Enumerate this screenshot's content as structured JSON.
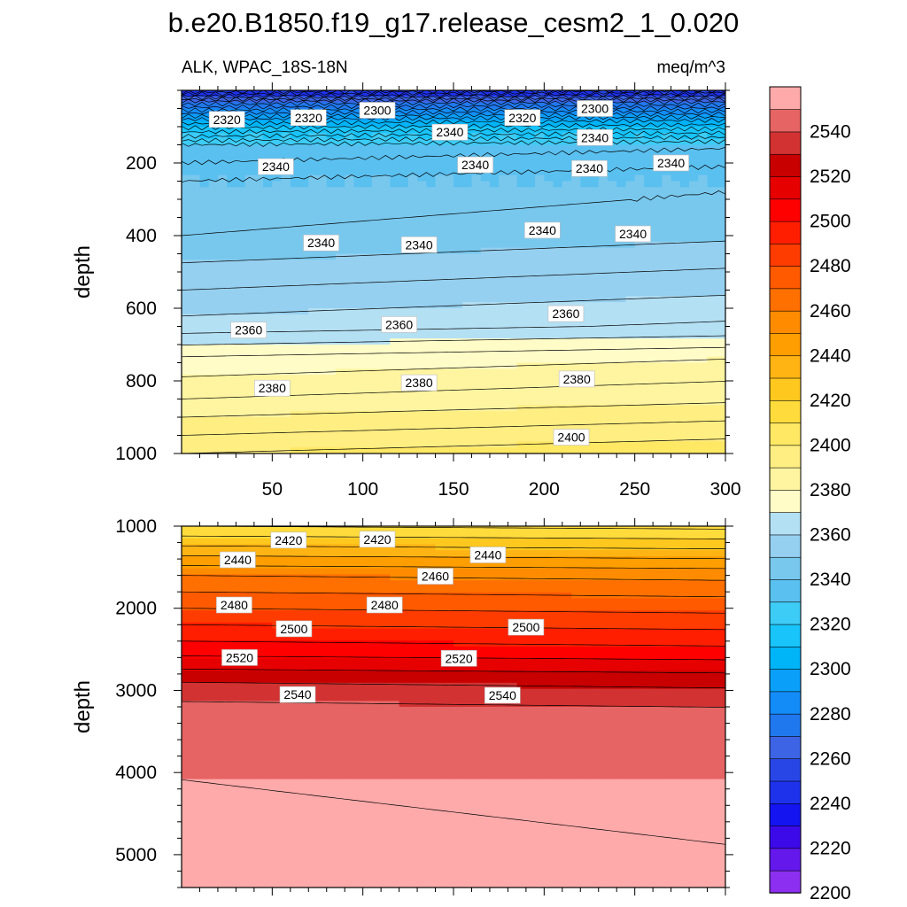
{
  "chart_data": [
    {
      "type": "heatmap",
      "panel": "upper",
      "title": "b.e20.B1850.f19_g17.release_cesm2_1_0.020",
      "left_string": "ALK, WPAC_18S-18N",
      "right_string": "meq/m^3",
      "xlabel": "",
      "ylabel": "depth",
      "xlim": [
        0,
        300
      ],
      "ylim": [
        1000,
        0
      ],
      "x_ticks": [
        50,
        100,
        150,
        200,
        250,
        300
      ],
      "x_tick_labels": [
        "50",
        "100",
        "150",
        "200",
        "250",
        "300"
      ],
      "y_ticks": [
        200,
        400,
        600,
        800,
        1000
      ],
      "y_tick_labels": [
        "200",
        "400",
        "600",
        "800",
        "1000"
      ],
      "contour_interval": 5,
      "approx_profile": {
        "depth": [
          0,
          30,
          80,
          150,
          250,
          400,
          550,
          650,
          740,
          850,
          950,
          1000
        ],
        "value": [
          2240,
          2270,
          2300,
          2330,
          2340,
          2345,
          2355,
          2362,
          2376,
          2385,
          2395,
          2400
        ]
      },
      "contour_labels": [
        {
          "text": "2320",
          "x": 25,
          "depth": 80
        },
        {
          "text": "2320",
          "x": 70,
          "depth": 75
        },
        {
          "text": "2300",
          "x": 108,
          "depth": 55
        },
        {
          "text": "2320",
          "x": 188,
          "depth": 75
        },
        {
          "text": "2300",
          "x": 228,
          "depth": 50
        },
        {
          "text": "2340",
          "x": 148,
          "depth": 115
        },
        {
          "text": "2340",
          "x": 228,
          "depth": 130
        },
        {
          "text": "2340",
          "x": 52,
          "depth": 210
        },
        {
          "text": "2340",
          "x": 162,
          "depth": 205
        },
        {
          "text": "2340",
          "x": 225,
          "depth": 215
        },
        {
          "text": "2340",
          "x": 270,
          "depth": 200
        },
        {
          "text": "2340",
          "x": 77,
          "depth": 420
        },
        {
          "text": "2340",
          "x": 131,
          "depth": 425
        },
        {
          "text": "2340",
          "x": 199,
          "depth": 385
        },
        {
          "text": "2340",
          "x": 249,
          "depth": 395
        },
        {
          "text": "2360",
          "x": 37,
          "depth": 660
        },
        {
          "text": "2360",
          "x": 120,
          "depth": 645
        },
        {
          "text": "2360",
          "x": 212,
          "depth": 615
        },
        {
          "text": "2380",
          "x": 50,
          "depth": 820
        },
        {
          "text": "2380",
          "x": 131,
          "depth": 805
        },
        {
          "text": "2380",
          "x": 218,
          "depth": 795
        },
        {
          "text": "2400",
          "x": 215,
          "depth": 955
        }
      ]
    },
    {
      "type": "heatmap",
      "panel": "lower",
      "xlabel": "",
      "ylabel": "depth",
      "xlim": [
        0,
        300
      ],
      "ylim": [
        5400,
        1000
      ],
      "y_ticks": [
        1000,
        2000,
        3000,
        4000,
        5000
      ],
      "y_tick_labels": [
        "1000",
        "2000",
        "3000",
        "4000",
        "5000"
      ],
      "contour_interval": 10,
      "approx_profile": {
        "depth": [
          1000,
          1600,
          2000,
          2500,
          2900,
          3300,
          5400
        ],
        "value": [
          2410,
          2460,
          2480,
          2505,
          2530,
          2547,
          2555
        ]
      },
      "contour_labels": [
        {
          "text": "2420",
          "x": 59,
          "depth": 1170
        },
        {
          "text": "2420",
          "x": 108,
          "depth": 1160
        },
        {
          "text": "2440",
          "x": 31,
          "depth": 1410
        },
        {
          "text": "2440",
          "x": 169,
          "depth": 1350
        },
        {
          "text": "2460",
          "x": 140,
          "depth": 1610
        },
        {
          "text": "2480",
          "x": 29,
          "depth": 1960
        },
        {
          "text": "2480",
          "x": 112,
          "depth": 1960
        },
        {
          "text": "2500",
          "x": 62,
          "depth": 2250
        },
        {
          "text": "2500",
          "x": 190,
          "depth": 2230
        },
        {
          "text": "2520",
          "x": 32,
          "depth": 2600
        },
        {
          "text": "2520",
          "x": 153,
          "depth": 2610
        },
        {
          "text": "2540",
          "x": 64,
          "depth": 3050
        },
        {
          "text": "2540",
          "x": 177,
          "depth": 3060
        }
      ]
    },
    {
      "type": "colorbar",
      "levels": [
        2200,
        2210,
        2220,
        2230,
        2240,
        2250,
        2260,
        2270,
        2280,
        2290,
        2300,
        2310,
        2320,
        2330,
        2340,
        2350,
        2360,
        2370,
        2380,
        2390,
        2400,
        2410,
        2420,
        2430,
        2440,
        2450,
        2460,
        2470,
        2480,
        2490,
        2500,
        2510,
        2520,
        2530,
        2540,
        2550
      ],
      "tick_labels": [
        "2200",
        "2220",
        "2240",
        "2260",
        "2280",
        "2300",
        "2320",
        "2340",
        "2360",
        "2380",
        "2400",
        "2420",
        "2440",
        "2460",
        "2480",
        "2500",
        "2520",
        "2540"
      ],
      "colors": [
        "#8c2ff0",
        "#6418ec",
        "#3c0ae8",
        "#1414f0",
        "#1e32ec",
        "#2846e6",
        "#3c64e4",
        "#2078ee",
        "#148cf8",
        "#0aa0fa",
        "#00b4f8",
        "#18c4fa",
        "#3cccf6",
        "#5ac0f0",
        "#78c8ee",
        "#96d0f0",
        "#b4e0f4",
        "#fffcc8",
        "#fff5a0",
        "#ffee82",
        "#ffe864",
        "#ffdc3c",
        "#ffc81e",
        "#ffb414",
        "#ff9e00",
        "#ff8c00",
        "#ff7000",
        "#ff5a00",
        "#ff3c00",
        "#ff1e00",
        "#ff0000",
        "#e60000",
        "#c80000",
        "#d23232",
        "#e66464",
        "#ffaaaa"
      ]
    }
  ]
}
